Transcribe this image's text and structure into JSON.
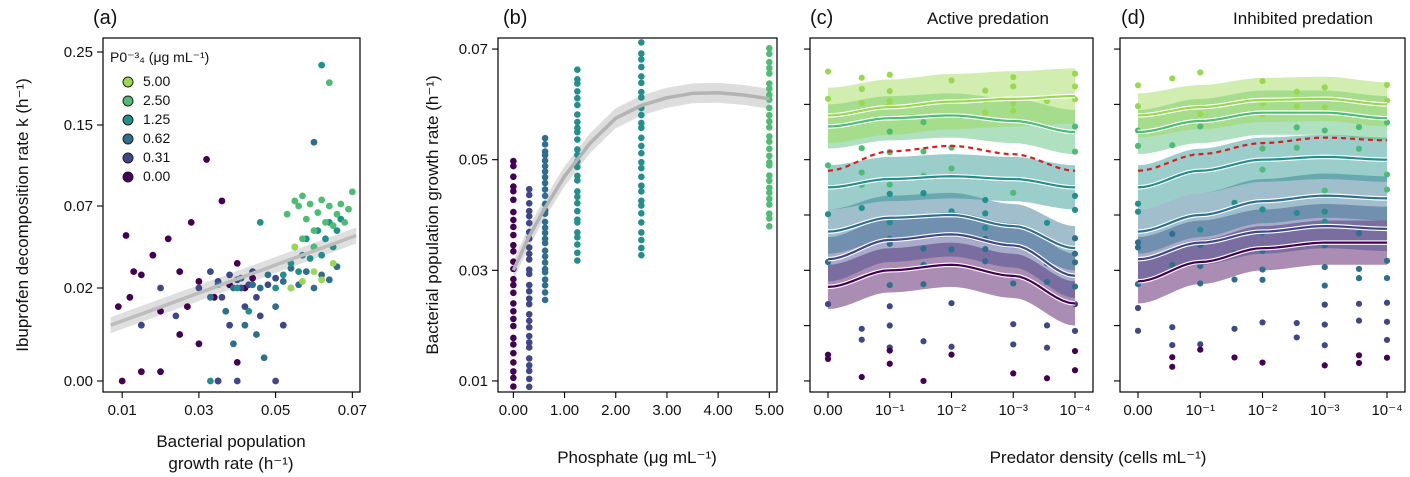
{
  "chart_data": [
    {
      "type": "scatter",
      "panel": "a",
      "tag": "(a)",
      "xlabel_line1": "Bacterial population",
      "xlabel_line2": "growth rate (h⁻¹)",
      "ylabel": "Ibuprofen decomposition rate k (h⁻¹)",
      "xlim": [
        0.005,
        0.072
      ],
      "y_ticks": [
        "0.00",
        "0.02",
        "0.07",
        "0.15",
        "0.25"
      ],
      "y_tick_values": [
        0.0,
        0.02,
        0.07,
        0.15,
        0.25
      ],
      "x_ticks": [
        "0.01",
        "0.03",
        "0.05",
        "0.07"
      ],
      "x_tick_values": [
        0.01,
        0.03,
        0.05,
        0.07
      ],
      "legend": {
        "title": "P0⁻³₄ (μg mL⁻¹)",
        "entries": [
          {
            "label": "5.00",
            "color": "#9ad94f"
          },
          {
            "label": "2.50",
            "color": "#4dbd74"
          },
          {
            "label": "1.25",
            "color": "#21908c"
          },
          {
            "label": "0.62",
            "color": "#2e6e8e"
          },
          {
            "label": "0.31",
            "color": "#3f4789"
          },
          {
            "label": "0.00",
            "color": "#440154"
          }
        ]
      },
      "trend": {
        "x": [
          0.007,
          0.071
        ],
        "y": [
          0.012,
          0.052
        ]
      },
      "points": [
        [
          0.009,
          0.016,
          5
        ],
        [
          0.012,
          0.018,
          5
        ],
        [
          0.015,
          0.028,
          5
        ],
        [
          0.011,
          0.052,
          5
        ],
        [
          0.013,
          0.03,
          5
        ],
        [
          0.02,
          0.015,
          5
        ],
        [
          0.022,
          0.05,
          5
        ],
        [
          0.025,
          0.03,
          5
        ],
        [
          0.028,
          0.06,
          5
        ],
        [
          0.03,
          0.024,
          5
        ],
        [
          0.032,
          0.116,
          5
        ],
        [
          0.034,
          0.018,
          5
        ],
        [
          0.036,
          0.075,
          5
        ],
        [
          0.038,
          0.022,
          5
        ],
        [
          0.04,
          0.035,
          5
        ],
        [
          0.042,
          0.02,
          5
        ],
        [
          0.044,
          0.026,
          5
        ],
        [
          0.01,
          0.0,
          5
        ],
        [
          0.015,
          0.002,
          5
        ],
        [
          0.02,
          0.002,
          5
        ],
        [
          0.025,
          0.01,
          5
        ],
        [
          0.03,
          0.008,
          5
        ],
        [
          0.035,
          0.0,
          5
        ],
        [
          0.04,
          0.004,
          5
        ],
        [
          0.018,
          0.04,
          5
        ],
        [
          0.027,
          0.016,
          5
        ],
        [
          0.015,
          0.012,
          4
        ],
        [
          0.02,
          0.02,
          4
        ],
        [
          0.024,
          0.014,
          4
        ],
        [
          0.03,
          0.02,
          4
        ],
        [
          0.033,
          0.03,
          4
        ],
        [
          0.035,
          0.024,
          4
        ],
        [
          0.036,
          0.018,
          4
        ],
        [
          0.038,
          0.028,
          4
        ],
        [
          0.04,
          0.025,
          4
        ],
        [
          0.041,
          0.02,
          4
        ],
        [
          0.042,
          0.016,
          4
        ],
        [
          0.043,
          0.022,
          4
        ],
        [
          0.044,
          0.03,
          4
        ],
        [
          0.045,
          0.018,
          4
        ],
        [
          0.046,
          0.014,
          4
        ],
        [
          0.048,
          0.022,
          4
        ],
        [
          0.05,
          0.026,
          4
        ],
        [
          0.052,
          0.012,
          4
        ],
        [
          0.054,
          0.02,
          4
        ],
        [
          0.035,
          0.0,
          4
        ],
        [
          0.04,
          0.0,
          4
        ],
        [
          0.05,
          0.0,
          4
        ],
        [
          0.038,
          0.012,
          4
        ],
        [
          0.033,
          0.018,
          3
        ],
        [
          0.035,
          0.022,
          3
        ],
        [
          0.037,
          0.015,
          3
        ],
        [
          0.039,
          0.02,
          3
        ],
        [
          0.041,
          0.026,
          3
        ],
        [
          0.042,
          0.012,
          3
        ],
        [
          0.044,
          0.022,
          3
        ],
        [
          0.046,
          0.02,
          3
        ],
        [
          0.048,
          0.028,
          3
        ],
        [
          0.05,
          0.016,
          3
        ],
        [
          0.052,
          0.024,
          3
        ],
        [
          0.054,
          0.032,
          3
        ],
        [
          0.056,
          0.022,
          3
        ],
        [
          0.058,
          0.03,
          3
        ],
        [
          0.06,
          0.02,
          3
        ],
        [
          0.062,
          0.028,
          3
        ],
        [
          0.064,
          0.025,
          3
        ],
        [
          0.066,
          0.033,
          3
        ],
        [
          0.06,
          0.133,
          3
        ],
        [
          0.045,
          0.01,
          3
        ],
        [
          0.047,
          0.005,
          3
        ],
        [
          0.039,
          0.008,
          3
        ],
        [
          0.04,
          0.02,
          2
        ],
        [
          0.043,
          0.015,
          2
        ],
        [
          0.046,
          0.06,
          2
        ],
        [
          0.05,
          0.02,
          2
        ],
        [
          0.052,
          0.028,
          2
        ],
        [
          0.054,
          0.035,
          2
        ],
        [
          0.055,
          0.045,
          2
        ],
        [
          0.056,
          0.03,
          2
        ],
        [
          0.057,
          0.04,
          2
        ],
        [
          0.058,
          0.05,
          2
        ],
        [
          0.059,
          0.038,
          2
        ],
        [
          0.06,
          0.045,
          2
        ],
        [
          0.061,
          0.055,
          2
        ],
        [
          0.062,
          0.04,
          2
        ],
        [
          0.063,
          0.05,
          2
        ],
        [
          0.064,
          0.06,
          2
        ],
        [
          0.065,
          0.045,
          2
        ],
        [
          0.066,
          0.055,
          2
        ],
        [
          0.067,
          0.062,
          2
        ],
        [
          0.062,
          0.232,
          2
        ],
        [
          0.033,
          0.0,
          2
        ],
        [
          0.053,
          0.065,
          1
        ],
        [
          0.055,
          0.075,
          1
        ],
        [
          0.056,
          0.07,
          1
        ],
        [
          0.057,
          0.08,
          1
        ],
        [
          0.058,
          0.062,
          1
        ],
        [
          0.059,
          0.072,
          1
        ],
        [
          0.06,
          0.055,
          1
        ],
        [
          0.061,
          0.066,
          1
        ],
        [
          0.062,
          0.076,
          1
        ],
        [
          0.063,
          0.06,
          1
        ],
        [
          0.064,
          0.07,
          1
        ],
        [
          0.065,
          0.058,
          1
        ],
        [
          0.066,
          0.065,
          1
        ],
        [
          0.067,
          0.072,
          1
        ],
        [
          0.068,
          0.06,
          1
        ],
        [
          0.069,
          0.068,
          1
        ],
        [
          0.07,
          0.084,
          1
        ],
        [
          0.064,
          0.208,
          1
        ],
        [
          0.057,
          0.05,
          1
        ],
        [
          0.06,
          0.045,
          1
        ],
        [
          0.054,
          0.02,
          0
        ],
        [
          0.057,
          0.024,
          0
        ],
        [
          0.06,
          0.03,
          0
        ],
        [
          0.062,
          0.025,
          0
        ],
        [
          0.065,
          0.035,
          0
        ],
        [
          0.055,
          0.045,
          0
        ]
      ]
    },
    {
      "type": "scatter",
      "panel": "b",
      "tag": "(b)",
      "xlabel": "Phosphate (μg mL⁻¹)",
      "ylabel": "Bacterial population growth rate (h⁻¹)",
      "xlim": [
        -0.3,
        5.15
      ],
      "ylim": [
        0.008,
        0.072
      ],
      "x_ticks": [
        "0.00",
        "1.00",
        "2.00",
        "3.00",
        "4.00",
        "5.00"
      ],
      "x_tick_values": [
        0,
        1,
        2,
        3,
        4,
        5
      ],
      "y_ticks": [
        "0.01",
        "0.03",
        "0.05",
        "0.07"
      ],
      "y_tick_values": [
        0.01,
        0.03,
        0.05,
        0.07
      ],
      "trend": {
        "x": [
          0,
          0.3,
          0.6,
          1.0,
          1.5,
          2.0,
          2.5,
          3.0,
          3.5,
          4.0,
          4.5,
          5.0
        ],
        "y": [
          0.03,
          0.036,
          0.041,
          0.047,
          0.053,
          0.0575,
          0.0598,
          0.0612,
          0.062,
          0.0621,
          0.0617,
          0.061
        ],
        "band": 0.0018
      },
      "columns": [
        {
          "x": 0.0,
          "level": 5,
          "ymin": 0.009,
          "ymax": 0.05
        },
        {
          "x": 0.31,
          "level": 4,
          "ymin": 0.009,
          "ymax": 0.045
        },
        {
          "x": 0.62,
          "level": 3,
          "ymin": 0.025,
          "ymax": 0.054
        },
        {
          "x": 1.25,
          "level": 2,
          "ymin": 0.032,
          "ymax": 0.066
        },
        {
          "x": 2.5,
          "level": 2,
          "ymin": 0.033,
          "ymax": 0.071
        },
        {
          "x": 5.0,
          "level": 1,
          "ymin": 0.038,
          "ymax": 0.07
        }
      ]
    },
    {
      "type": "line",
      "panel": "c",
      "tag": "(c)",
      "title": "Active predation",
      "x_ticks": [
        "0.00",
        "10⁻¹",
        "10⁻²",
        "10⁻³",
        "10⁻⁴"
      ],
      "ylim": [
        0.008,
        0.072
      ],
      "y_tick_values": [
        0.01,
        0.02,
        0.03,
        0.04,
        0.05,
        0.06,
        0.07
      ],
      "series": [
        {
          "level": 0,
          "values": [
            0.058,
            0.0595,
            0.0605,
            0.061,
            0.0615
          ],
          "band": 0.005
        },
        {
          "level": 1,
          "values": [
            0.056,
            0.0575,
            0.058,
            0.057,
            0.055
          ],
          "band": 0.004
        },
        {
          "level": 2,
          "values": [
            0.045,
            0.0465,
            0.047,
            0.0465,
            0.045
          ],
          "band": 0.004
        },
        {
          "level": 3,
          "values": [
            0.037,
            0.0395,
            0.04,
            0.038,
            0.034
          ],
          "band": 0.004
        },
        {
          "level": 4,
          "values": [
            0.032,
            0.0355,
            0.0365,
            0.0345,
            0.029
          ],
          "band": 0.004
        },
        {
          "level": 5,
          "values": [
            0.027,
            0.03,
            0.031,
            0.029,
            0.024
          ],
          "band": 0.004
        }
      ],
      "dashed": [
        0.048,
        0.0515,
        0.0525,
        0.051,
        0.048
      ]
    },
    {
      "type": "line",
      "panel": "d",
      "tag": "(d)",
      "title": "Inhibited predation",
      "x_ticks": [
        "0.00",
        "10⁻¹",
        "10⁻²",
        "10⁻³",
        "10⁻⁴"
      ],
      "ylim": [
        0.008,
        0.072
      ],
      "y_tick_values": [
        0.01,
        0.02,
        0.03,
        0.04,
        0.05,
        0.06,
        0.07
      ],
      "series": [
        {
          "level": 0,
          "values": [
            0.058,
            0.0595,
            0.0608,
            0.061,
            0.06
          ],
          "band": 0.004
        },
        {
          "level": 1,
          "values": [
            0.055,
            0.057,
            0.0585,
            0.0585,
            0.0575
          ],
          "band": 0.004
        },
        {
          "level": 2,
          "values": [
            0.045,
            0.048,
            0.05,
            0.0505,
            0.05
          ],
          "band": 0.004
        },
        {
          "level": 3,
          "values": [
            0.037,
            0.04,
            0.0425,
            0.0435,
            0.043
          ],
          "band": 0.004
        },
        {
          "level": 4,
          "values": [
            0.032,
            0.035,
            0.037,
            0.038,
            0.0375
          ],
          "band": 0.004
        },
        {
          "level": 5,
          "values": [
            0.028,
            0.0315,
            0.034,
            0.035,
            0.035
          ],
          "band": 0.004
        }
      ],
      "dashed": [
        0.048,
        0.051,
        0.053,
        0.054,
        0.0535
      ]
    }
  ],
  "shared": {
    "xlabel_cd": "Predator density (cells mL⁻¹)",
    "level_colors": [
      "#9ad94f",
      "#4dbd74",
      "#21908c",
      "#2e6e8e",
      "#3f4789",
      "#440154"
    ],
    "dashed_color": "#d62020"
  }
}
